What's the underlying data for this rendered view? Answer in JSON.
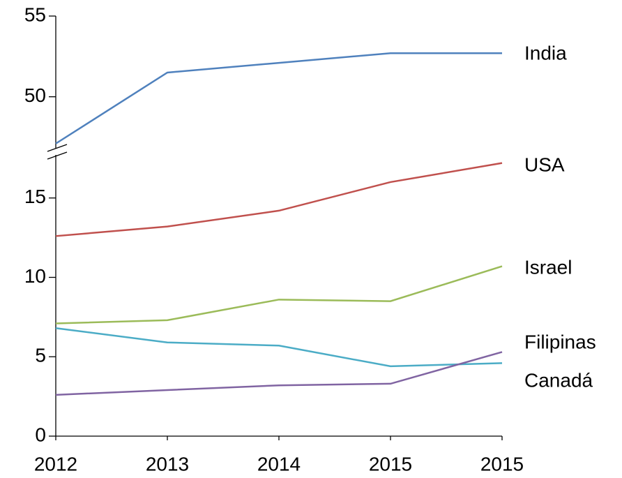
{
  "chart_data": {
    "type": "line",
    "categories": [
      "2012",
      "2013",
      "2014",
      "2015",
      "2015"
    ],
    "series": [
      {
        "name": "India",
        "color": "#4f81bd",
        "values": [
          47.1,
          51.5,
          52.1,
          52.7,
          52.7
        ]
      },
      {
        "name": "USA",
        "color": "#c0504d",
        "values": [
          12.6,
          13.2,
          14.2,
          16.0,
          17.2
        ]
      },
      {
        "name": "Israel",
        "color": "#9bbb59",
        "values": [
          7.1,
          7.3,
          8.6,
          8.5,
          10.7
        ]
      },
      {
        "name": "Filipinas",
        "color": "#4bacc6",
        "values": [
          6.8,
          5.9,
          5.7,
          4.4,
          4.6
        ]
      },
      {
        "name": "Canadá",
        "color": "#8064a2",
        "values": [
          2.6,
          2.9,
          3.2,
          3.3,
          5.3
        ]
      }
    ],
    "ylim": [
      0,
      55
    ],
    "axis_break": [
      17.8,
      46.7
    ],
    "yticks": [
      0,
      5,
      10,
      15,
      50,
      55
    ],
    "grid": false
  }
}
